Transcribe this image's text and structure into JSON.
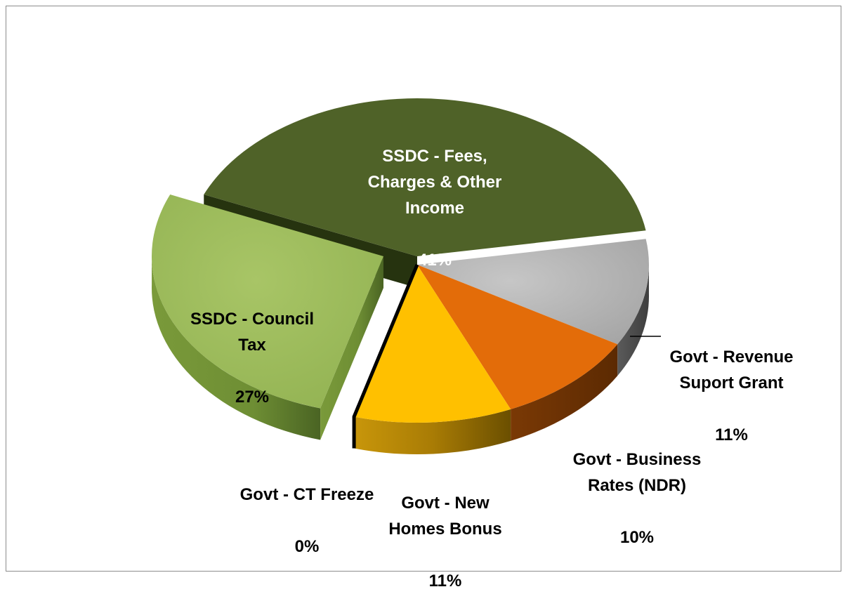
{
  "chart_data": {
    "type": "pie",
    "title": "",
    "slices": [
      {
        "label": "SSDC - Fees,\nCharges & Other\nIncome",
        "value": 41,
        "value_label": "41%",
        "color": "#4f6228"
      },
      {
        "label": "Govt - Revenue\nSuport Grant",
        "value": 11,
        "value_label": "11%",
        "color": "#a6a6a6"
      },
      {
        "label": "Govt - Business\nRates (NDR)",
        "value": 10,
        "value_label": "10%",
        "color": "#e46c0a"
      },
      {
        "label": "Govt - New\nHomes Bonus",
        "value": 11,
        "value_label": "11%",
        "color": "#ffc000"
      },
      {
        "label": "Govt  - CT Freeze",
        "value": 0,
        "value_label": "0%",
        "color": "#000000"
      },
      {
        "label": "SSDC - Council\nTax",
        "value": 27,
        "value_label": "27%",
        "color": "#9bbb59"
      }
    ],
    "legend": "none",
    "style": "3d-exploded"
  }
}
